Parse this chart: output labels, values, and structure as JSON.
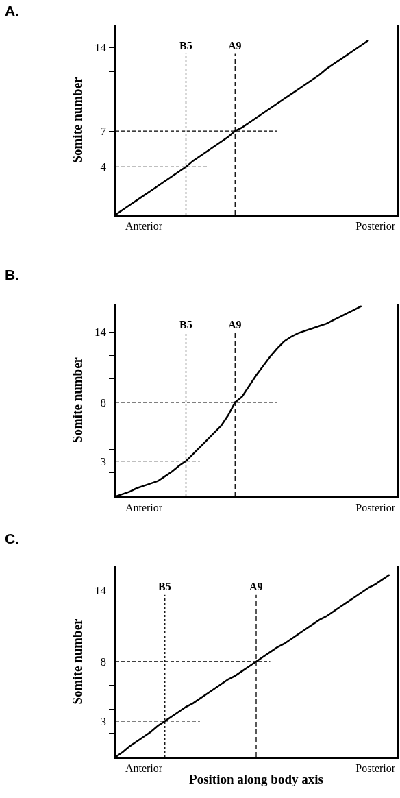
{
  "chart_data": [
    {
      "type": "line",
      "title": "A.",
      "ylabel": "Somite number",
      "annotations": [
        "B5",
        "A9"
      ],
      "categories": [
        null,
        null,
        null,
        null,
        "Anterior",
        null,
        null,
        null,
        null,
        null,
        null,
        null,
        null,
        null,
        null,
        null,
        null,
        null,
        null,
        null,
        null,
        null,
        null,
        null,
        null,
        null,
        null,
        null,
        null,
        null,
        null,
        null,
        null,
        null,
        null,
        null,
        null,
        "Posterior",
        null,
        null,
        null
      ],
      "ylim": [
        0,
        15.85
      ],
      "yticks": [
        {
          "value": 2,
          "label": null
        },
        4,
        {
          "value": 6,
          "label": null
        },
        7,
        {
          "value": 8,
          "label": null
        },
        {
          "value": 10,
          "label": null
        },
        {
          "value": 12,
          "label": null
        },
        14
      ],
      "grid": false,
      "marker": "none",
      "series": [
        {
          "color": "#000000",
          "line_style": "solid",
          "values": [
            0,
            0.4,
            0.8,
            1.2,
            1.6,
            2,
            2.4,
            2.8,
            3.2,
            3.6,
            4,
            4.5,
            4.9,
            5.3,
            5.7,
            6.1,
            6.5,
            7,
            7.3,
            7.7,
            8.1,
            8.5,
            8.9,
            9.3,
            9.7,
            10.1,
            10.5,
            10.9,
            11.3,
            11.7,
            12.2,
            12.6,
            13,
            13.4,
            13.8,
            14.2,
            14.6,
            null,
            null,
            null,
            null
          ]
        },
        {
          "color": "#000000",
          "line_style": "dashed",
          "values": [
            4,
            4,
            4,
            4,
            4,
            4,
            4,
            4,
            4,
            4,
            4,
            4,
            4,
            4,
            null,
            null,
            null,
            null,
            null,
            null,
            null,
            null,
            null,
            null,
            null,
            null,
            null,
            null,
            null,
            null,
            null,
            null,
            null,
            null,
            null,
            null,
            null,
            null,
            null,
            null,
            null
          ]
        },
        {
          "color": "#000000",
          "line_style": "dashed",
          "values": [
            7,
            7,
            7,
            7,
            7,
            7,
            7,
            7,
            7,
            7,
            7,
            7,
            7,
            7,
            7,
            7,
            7,
            7,
            7,
            7,
            7,
            7,
            7,
            7,
            null,
            null,
            null,
            null,
            null,
            null,
            null,
            null,
            null,
            null,
            null,
            null,
            null,
            null,
            null,
            null,
            null
          ]
        }
      ]
    },
    {
      "type": "line",
      "title": "B.",
      "ylabel": "Somite number",
      "annotations": [
        "B5",
        "A9"
      ],
      "categories": [
        null,
        null,
        null,
        null,
        "Anterior",
        null,
        null,
        null,
        null,
        null,
        null,
        null,
        null,
        null,
        null,
        null,
        null,
        null,
        null,
        null,
        null,
        null,
        null,
        null,
        null,
        null,
        null,
        null,
        null,
        null,
        null,
        null,
        null,
        null,
        null,
        null,
        null,
        "Posterior",
        null,
        null,
        null
      ],
      "ylim": [
        0,
        16.4
      ],
      "yticks": [
        {
          "value": 2,
          "label": null
        },
        3,
        {
          "value": 4,
          "label": null
        },
        {
          "value": 6,
          "label": null
        },
        8,
        {
          "value": 10,
          "label": null
        },
        {
          "value": 12,
          "label": null
        },
        14
      ],
      "grid": false,
      "marker": "none",
      "series": [
        {
          "color": "#000000",
          "line_style": "solid",
          "values": [
            0,
            0.2,
            0.4,
            0.7,
            0.9,
            1.1,
            1.3,
            1.7,
            2.1,
            2.6,
            3,
            3.6,
            4.2,
            4.8,
            5.4,
            6,
            6.9,
            8,
            8.5,
            9.4,
            10.3,
            11.1,
            11.9,
            12.6,
            13.2,
            13.6,
            13.9,
            14.1,
            14.3,
            14.5,
            14.7,
            15,
            15.3,
            15.6,
            15.9,
            16.2,
            null,
            null,
            null,
            null,
            null
          ]
        },
        {
          "color": "#000000",
          "line_style": "dashed",
          "values": [
            3,
            3,
            3,
            3,
            3,
            3,
            3,
            3,
            3,
            3,
            3,
            3,
            3,
            null,
            null,
            null,
            null,
            null,
            null,
            null,
            null,
            null,
            null,
            null,
            null,
            null,
            null,
            null,
            null,
            null,
            null,
            null,
            null,
            null,
            null,
            null,
            null,
            null,
            null,
            null,
            null
          ]
        },
        {
          "color": "#000000",
          "line_style": "dashed",
          "values": [
            8,
            8,
            8,
            8,
            8,
            8,
            8,
            8,
            8,
            8,
            8,
            8,
            8,
            8,
            8,
            8,
            8,
            8,
            8,
            8,
            8,
            8,
            8,
            8,
            null,
            null,
            null,
            null,
            null,
            null,
            null,
            null,
            null,
            null,
            null,
            null,
            null,
            null,
            null,
            null,
            null
          ]
        }
      ]
    },
    {
      "type": "line",
      "title": "C.",
      "xlabel": "Position along body axis",
      "ylabel": "Somite number",
      "annotations": [
        "B5",
        "A9"
      ],
      "categories": [
        null,
        null,
        null,
        null,
        "Anterior",
        null,
        null,
        null,
        null,
        null,
        null,
        null,
        null,
        null,
        null,
        null,
        null,
        null,
        null,
        null,
        null,
        null,
        null,
        null,
        null,
        null,
        null,
        null,
        null,
        null,
        null,
        null,
        null,
        null,
        null,
        null,
        null,
        "Posterior",
        null,
        null,
        null
      ],
      "ylim": [
        0,
        16
      ],
      "yticks": [
        {
          "value": 2,
          "label": null
        },
        3,
        {
          "value": 4,
          "label": null
        },
        {
          "value": 6,
          "label": null
        },
        8,
        {
          "value": 10,
          "label": null
        },
        {
          "value": 12,
          "label": null
        },
        14
      ],
      "grid": false,
      "marker": "none",
      "series": [
        {
          "color": "#000000",
          "line_style": "solid",
          "values": [
            0,
            0.4,
            0.9,
            1.3,
            1.7,
            2.1,
            2.6,
            3,
            3.4,
            3.8,
            4.2,
            4.5,
            4.9,
            5.3,
            5.7,
            6.1,
            6.5,
            6.8,
            7.2,
            7.6,
            8,
            8.4,
            8.8,
            9.2,
            9.5,
            9.9,
            10.3,
            10.7,
            11.1,
            11.5,
            11.8,
            12.2,
            12.6,
            13,
            13.4,
            13.8,
            14.2,
            14.5,
            14.9,
            15.3,
            null
          ]
        },
        {
          "color": "#000000",
          "line_style": "dashed",
          "values": [
            3,
            3,
            3,
            3,
            3,
            3,
            3,
            3,
            3,
            3,
            3,
            3,
            3,
            null,
            null,
            null,
            null,
            null,
            null,
            null,
            null,
            null,
            null,
            null,
            null,
            null,
            null,
            null,
            null,
            null,
            null,
            null,
            null,
            null,
            null,
            null,
            null,
            null,
            null,
            null,
            null
          ]
        },
        {
          "color": "#000000",
          "line_style": "dashed",
          "values": [
            8,
            8,
            8,
            8,
            8,
            8,
            8,
            8,
            8,
            8,
            8,
            8,
            8,
            8,
            8,
            8,
            8,
            8,
            8,
            8,
            8,
            8,
            8,
            null,
            null,
            null,
            null,
            null,
            null,
            null,
            null,
            null,
            null,
            null,
            null,
            null,
            null,
            null,
            null,
            null,
            null
          ]
        }
      ]
    }
  ]
}
